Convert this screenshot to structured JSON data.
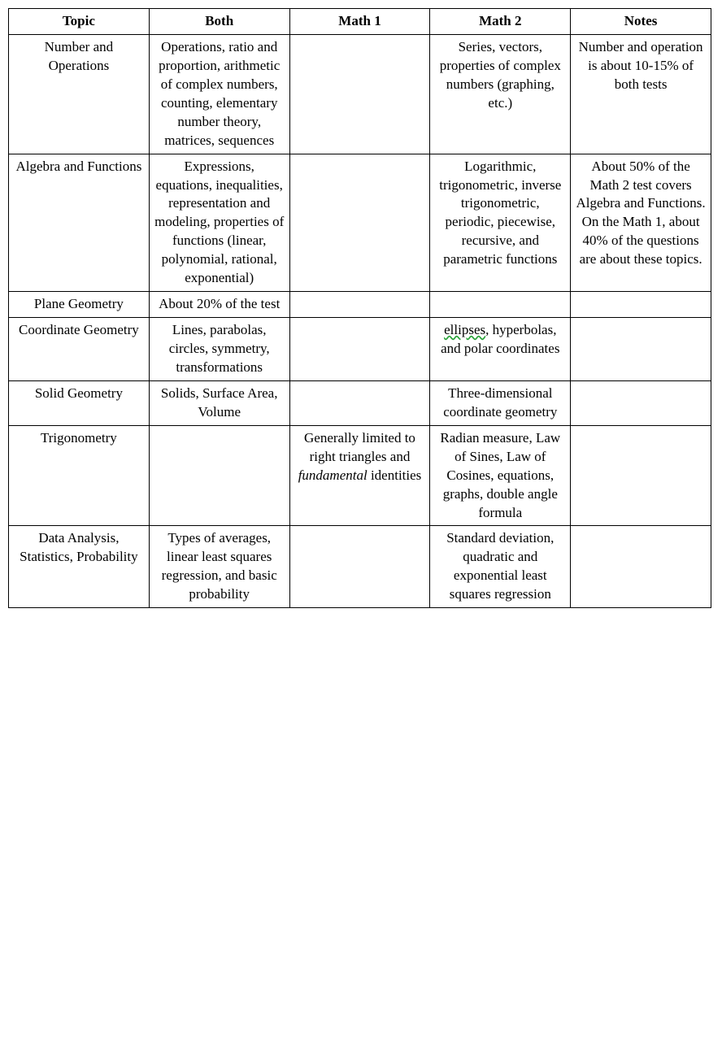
{
  "table": {
    "columns": [
      "Topic",
      "Both",
      "Math 1",
      "Math 2",
      "Notes"
    ],
    "rows": [
      {
        "topic": "Number and Operations",
        "both": "Operations, ratio and proportion, arithmetic of complex numbers, counting, elementary number theory, matrices, sequences",
        "math1": "",
        "math2": "Series, vectors, properties of complex numbers (graphing, etc.)",
        "notes": "Number and operation is about 10-15% of both tests"
      },
      {
        "topic": "Algebra and Functions",
        "both": "Expressions, equations, inequalities, representation and modeling, properties of functions (linear, polynomial, rational, exponential)",
        "math1": "",
        "math2": "Logarithmic, trigonometric, inverse trigonometric, periodic, piecewise, recursive, and parametric functions",
        "notes": "About 50% of the Math 2 test covers Algebra and Functions. On the Math 1, about 40% of the questions are about these topics."
      },
      {
        "topic": "Plane Geometry",
        "both": "About 20% of the test",
        "math1": "",
        "math2": "",
        "notes": ""
      },
      {
        "topic": "Coordinate Geometry",
        "both": "Lines, parabolas, circles, symmetry, transformations",
        "math1": "",
        "math2_pre": "",
        "math2_spell": "ellipses",
        "math2_post": ", hyperbolas, and polar coordinates",
        "notes": ""
      },
      {
        "topic": "Solid Geometry",
        "both": "Solids, Surface Area, Volume",
        "math1": "",
        "math2": "Three-dimensional coordinate geometry",
        "notes": ""
      },
      {
        "topic": "Trigonometry",
        "both": "",
        "math1_pre": "Generally limited to right triangles and ",
        "math1_italic": "fundamental",
        "math1_post": " identities",
        "math2": "Radian measure, Law of Sines, Law of Cosines, equations, graphs, double angle formula",
        "notes": ""
      },
      {
        "topic": "Data Analysis, Statistics, Probability",
        "both": "Types of averages, linear least squares regression, and basic probability",
        "math1": "",
        "math2": "Standard deviation, quadratic and exponential least squares regression",
        "notes": ""
      }
    ],
    "style": {
      "border_color": "#000000",
      "background_color": "#ffffff",
      "font_family": "Times New Roman",
      "font_size_pt": 13,
      "header_font_weight": "bold",
      "text_align": "center",
      "vertical_align": "top",
      "spellcheck_color": "#2aa33a",
      "column_widths_pct": [
        20,
        20,
        20,
        20,
        20
      ]
    }
  }
}
